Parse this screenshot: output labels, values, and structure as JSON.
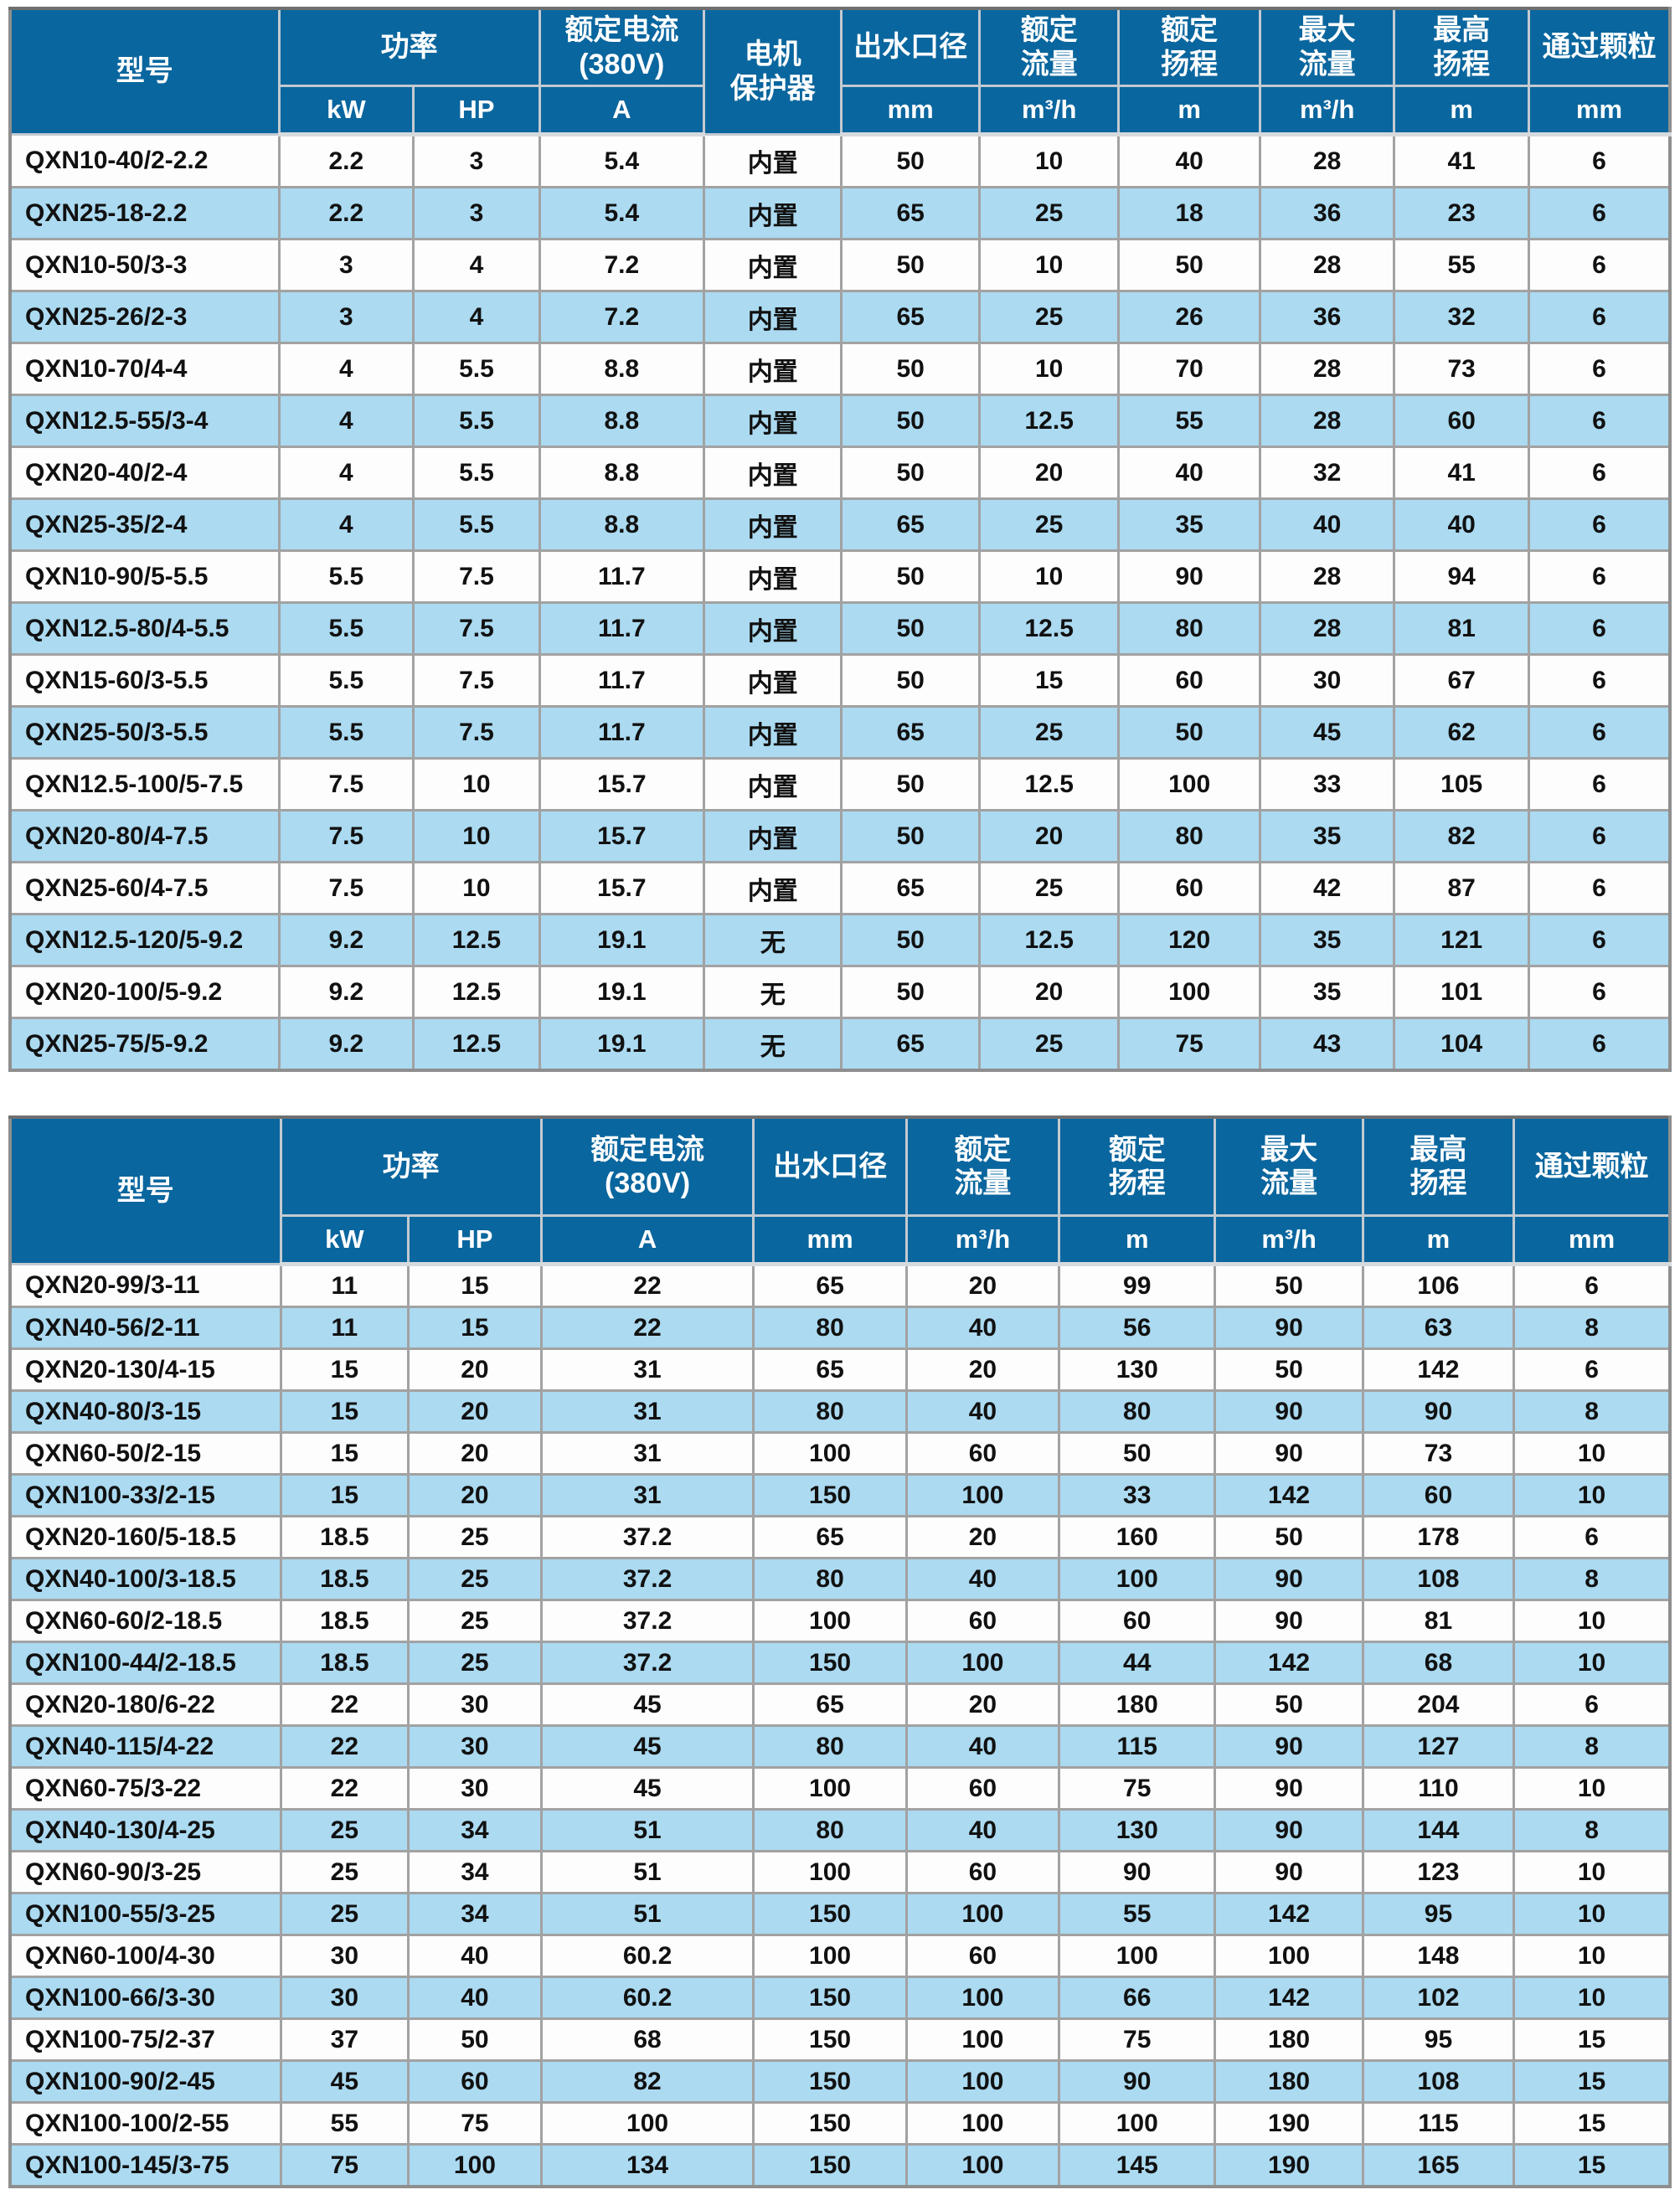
{
  "colors": {
    "header_bg": "#0a669e",
    "header_text": "#ffffff",
    "row_bg": "#fdfdfd",
    "row_alt_bg": "#abdaf1",
    "grid": "#a2a2a2",
    "header_grid": "#c3cad0",
    "text": "#111111"
  },
  "table1": {
    "header": {
      "model": "型号",
      "power": "功率",
      "kw": "kW",
      "hp": "HP",
      "current_l1": "额定电流",
      "current_l2": "(380V)",
      "current_unit": "A",
      "protector_l1": "电机",
      "protector_l2": "保护器",
      "outlet": "出水口径",
      "outlet_unit": "mm",
      "flow_l1": "额定",
      "flow_l2": "流量",
      "flow_unit": "m³/h",
      "head_l1": "额定",
      "head_l2": "扬程",
      "head_unit": "m",
      "maxflow_l1": "最大",
      "maxflow_l2": "流量",
      "maxflow_unit": "m³/h",
      "maxhead_l1": "最高",
      "maxhead_l2": "扬程",
      "maxhead_unit": "m",
      "particle": "通过颗粒",
      "particle_unit": "mm"
    },
    "rows": [
      [
        "QXN10-40/2-2.2",
        "2.2",
        "3",
        "5.4",
        "内置",
        "50",
        "10",
        "40",
        "28",
        "41",
        "6"
      ],
      [
        "QXN25-18-2.2",
        "2.2",
        "3",
        "5.4",
        "内置",
        "65",
        "25",
        "18",
        "36",
        "23",
        "6"
      ],
      [
        "QXN10-50/3-3",
        "3",
        "4",
        "7.2",
        "内置",
        "50",
        "10",
        "50",
        "28",
        "55",
        "6"
      ],
      [
        "QXN25-26/2-3",
        "3",
        "4",
        "7.2",
        "内置",
        "65",
        "25",
        "26",
        "36",
        "32",
        "6"
      ],
      [
        "QXN10-70/4-4",
        "4",
        "5.5",
        "8.8",
        "内置",
        "50",
        "10",
        "70",
        "28",
        "73",
        "6"
      ],
      [
        "QXN12.5-55/3-4",
        "4",
        "5.5",
        "8.8",
        "内置",
        "50",
        "12.5",
        "55",
        "28",
        "60",
        "6"
      ],
      [
        "QXN20-40/2-4",
        "4",
        "5.5",
        "8.8",
        "内置",
        "50",
        "20",
        "40",
        "32",
        "41",
        "6"
      ],
      [
        "QXN25-35/2-4",
        "4",
        "5.5",
        "8.8",
        "内置",
        "65",
        "25",
        "35",
        "40",
        "40",
        "6"
      ],
      [
        "QXN10-90/5-5.5",
        "5.5",
        "7.5",
        "11.7",
        "内置",
        "50",
        "10",
        "90",
        "28",
        "94",
        "6"
      ],
      [
        "QXN12.5-80/4-5.5",
        "5.5",
        "7.5",
        "11.7",
        "内置",
        "50",
        "12.5",
        "80",
        "28",
        "81",
        "6"
      ],
      [
        "QXN15-60/3-5.5",
        "5.5",
        "7.5",
        "11.7",
        "内置",
        "50",
        "15",
        "60",
        "30",
        "67",
        "6"
      ],
      [
        "QXN25-50/3-5.5",
        "5.5",
        "7.5",
        "11.7",
        "内置",
        "65",
        "25",
        "50",
        "45",
        "62",
        "6"
      ],
      [
        "QXN12.5-100/5-7.5",
        "7.5",
        "10",
        "15.7",
        "内置",
        "50",
        "12.5",
        "100",
        "33",
        "105",
        "6"
      ],
      [
        "QXN20-80/4-7.5",
        "7.5",
        "10",
        "15.7",
        "内置",
        "50",
        "20",
        "80",
        "35",
        "82",
        "6"
      ],
      [
        "QXN25-60/4-7.5",
        "7.5",
        "10",
        "15.7",
        "内置",
        "65",
        "25",
        "60",
        "42",
        "87",
        "6"
      ],
      [
        "QXN12.5-120/5-9.2",
        "9.2",
        "12.5",
        "19.1",
        "无",
        "50",
        "12.5",
        "120",
        "35",
        "121",
        "6"
      ],
      [
        "QXN20-100/5-9.2",
        "9.2",
        "12.5",
        "19.1",
        "无",
        "50",
        "20",
        "100",
        "35",
        "101",
        "6"
      ],
      [
        "QXN25-75/5-9.2",
        "9.2",
        "12.5",
        "19.1",
        "无",
        "65",
        "25",
        "75",
        "43",
        "104",
        "6"
      ]
    ]
  },
  "table2": {
    "header": {
      "model": "型号",
      "power": "功率",
      "kw": "kW",
      "hp": "HP",
      "current_l1": "额定电流",
      "current_l2": "(380V)",
      "current_unit": "A",
      "outlet": "出水口径",
      "outlet_unit": "mm",
      "flow_l1": "额定",
      "flow_l2": "流量",
      "flow_unit": "m³/h",
      "head_l1": "额定",
      "head_l2": "扬程",
      "head_unit": "m",
      "maxflow_l1": "最大",
      "maxflow_l2": "流量",
      "maxflow_unit": "m³/h",
      "maxhead_l1": "最高",
      "maxhead_l2": "扬程",
      "maxhead_unit": "m",
      "particle": "通过颗粒",
      "particle_unit": "mm"
    },
    "rows": [
      [
        "QXN20-99/3-11",
        "11",
        "15",
        "22",
        "65",
        "20",
        "99",
        "50",
        "106",
        "6"
      ],
      [
        "QXN40-56/2-11",
        "11",
        "15",
        "22",
        "80",
        "40",
        "56",
        "90",
        "63",
        "8"
      ],
      [
        "QXN20-130/4-15",
        "15",
        "20",
        "31",
        "65",
        "20",
        "130",
        "50",
        "142",
        "6"
      ],
      [
        "QXN40-80/3-15",
        "15",
        "20",
        "31",
        "80",
        "40",
        "80",
        "90",
        "90",
        "8"
      ],
      [
        "QXN60-50/2-15",
        "15",
        "20",
        "31",
        "100",
        "60",
        "50",
        "90",
        "73",
        "10"
      ],
      [
        "QXN100-33/2-15",
        "15",
        "20",
        "31",
        "150",
        "100",
        "33",
        "142",
        "60",
        "10"
      ],
      [
        "QXN20-160/5-18.5",
        "18.5",
        "25",
        "37.2",
        "65",
        "20",
        "160",
        "50",
        "178",
        "6"
      ],
      [
        "QXN40-100/3-18.5",
        "18.5",
        "25",
        "37.2",
        "80",
        "40",
        "100",
        "90",
        "108",
        "8"
      ],
      [
        "QXN60-60/2-18.5",
        "18.5",
        "25",
        "37.2",
        "100",
        "60",
        "60",
        "90",
        "81",
        "10"
      ],
      [
        "QXN100-44/2-18.5",
        "18.5",
        "25",
        "37.2",
        "150",
        "100",
        "44",
        "142",
        "68",
        "10"
      ],
      [
        "QXN20-180/6-22",
        "22",
        "30",
        "45",
        "65",
        "20",
        "180",
        "50",
        "204",
        "6"
      ],
      [
        "QXN40-115/4-22",
        "22",
        "30",
        "45",
        "80",
        "40",
        "115",
        "90",
        "127",
        "8"
      ],
      [
        "QXN60-75/3-22",
        "22",
        "30",
        "45",
        "100",
        "60",
        "75",
        "90",
        "110",
        "10"
      ],
      [
        "QXN40-130/4-25",
        "25",
        "34",
        "51",
        "80",
        "40",
        "130",
        "90",
        "144",
        "8"
      ],
      [
        "QXN60-90/3-25",
        "25",
        "34",
        "51",
        "100",
        "60",
        "90",
        "90",
        "123",
        "10"
      ],
      [
        "QXN100-55/3-25",
        "25",
        "34",
        "51",
        "150",
        "100",
        "55",
        "142",
        "95",
        "10"
      ],
      [
        "QXN60-100/4-30",
        "30",
        "40",
        "60.2",
        "100",
        "60",
        "100",
        "100",
        "148",
        "10"
      ],
      [
        "QXN100-66/3-30",
        "30",
        "40",
        "60.2",
        "150",
        "100",
        "66",
        "142",
        "102",
        "10"
      ],
      [
        "QXN100-75/2-37",
        "37",
        "50",
        "68",
        "150",
        "100",
        "75",
        "180",
        "95",
        "15"
      ],
      [
        "QXN100-90/2-45",
        "45",
        "60",
        "82",
        "150",
        "100",
        "90",
        "180",
        "108",
        "15"
      ],
      [
        "QXN100-100/2-55",
        "55",
        "75",
        "100",
        "150",
        "100",
        "100",
        "190",
        "115",
        "15"
      ],
      [
        "QXN100-145/3-75",
        "75",
        "100",
        "134",
        "150",
        "100",
        "145",
        "190",
        "165",
        "15"
      ]
    ]
  }
}
